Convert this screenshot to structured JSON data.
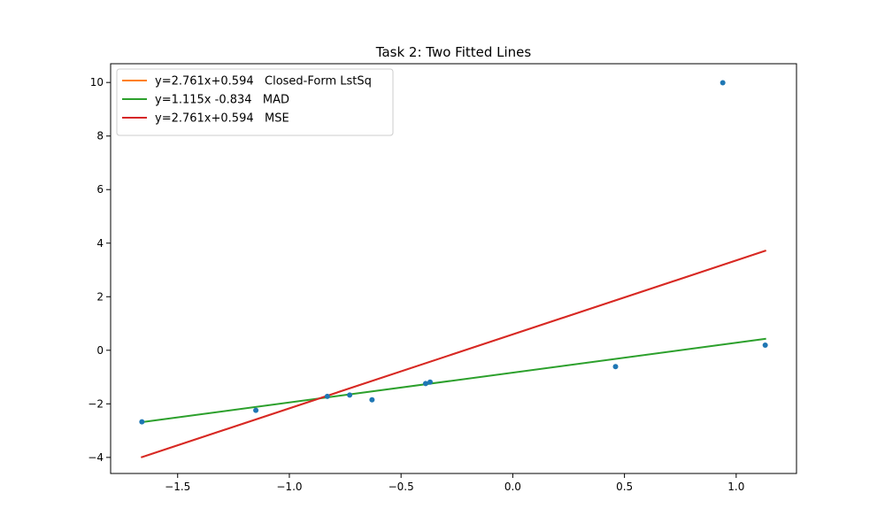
{
  "chart_data": {
    "type": "line",
    "title": "Task 2: Two Fitted Lines",
    "xlabel": "",
    "ylabel": "",
    "xlim": [
      -1.8,
      1.27
    ],
    "ylim": [
      -4.6,
      10.7
    ],
    "xticks": [
      -1.5,
      -1.0,
      -0.5,
      0.0,
      0.5,
      1.0
    ],
    "xtick_labels": [
      "−1.5",
      "−1.0",
      "−0.5",
      "0.0",
      "0.5",
      "1.0"
    ],
    "yticks": [
      -4,
      -2,
      0,
      2,
      4,
      6,
      8,
      10
    ],
    "ytick_labels": [
      "−4",
      "−2",
      "0",
      "2",
      "4",
      "6",
      "8",
      "10"
    ],
    "grid": false,
    "legend_position": "upper-left",
    "points": {
      "color": "#1f77b4",
      "x": [
        -1.66,
        -1.15,
        -0.83,
        -0.73,
        -0.63,
        -0.39,
        -0.37,
        0.46,
        0.94,
        1.13
      ],
      "y": [
        -2.67,
        -2.24,
        -1.72,
        -1.67,
        -1.85,
        -1.24,
        -1.19,
        -0.61,
        9.99,
        0.19
      ]
    },
    "series": [
      {
        "name": "y=2.761x+0.594   Closed-Form LstSq",
        "color": "#ff7f0e",
        "slope": 2.761,
        "intercept": 0.594,
        "x_range": [
          -1.66,
          1.13
        ]
      },
      {
        "name": "y=1.115x -0.834   MAD",
        "color": "#2ca02c",
        "slope": 1.115,
        "intercept": -0.834,
        "x_range": [
          -1.66,
          1.13
        ]
      },
      {
        "name": "y=2.761x+0.594   MSE",
        "color": "#d62728",
        "slope": 2.761,
        "intercept": 0.594,
        "x_range": [
          -1.66,
          1.13
        ]
      }
    ]
  }
}
